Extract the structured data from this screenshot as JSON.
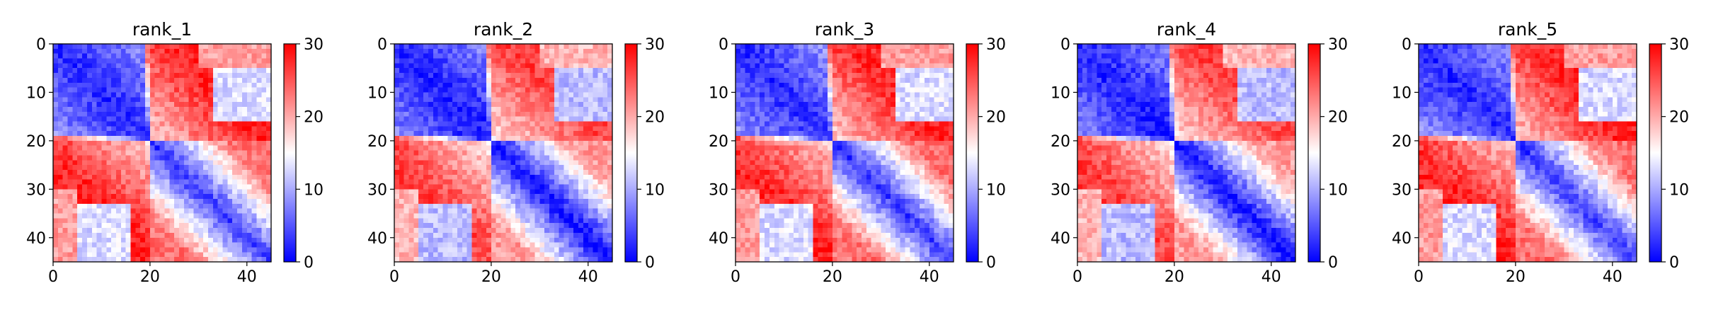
{
  "chart_data": [
    {
      "type": "heatmap",
      "title": "rank_1",
      "matrix_size": 45,
      "xticks": [
        "0",
        "20",
        "40"
      ],
      "yticks": [
        "0",
        "10",
        "20",
        "30",
        "40"
      ],
      "xlim": [
        0,
        45
      ],
      "ylim": [
        45,
        0
      ],
      "colorbar": {
        "min": 0,
        "max": 30,
        "ticks": [
          "0",
          "10",
          "20",
          "30"
        ],
        "colors": [
          "#0000ff",
          "#ffffff",
          "#ff0000"
        ]
      },
      "structure": {
        "domains": [
          [
            0,
            19
          ]
        ],
        "diagonal": "blue (low)",
        "off_diagonal_block_rows_20_45_cols_0_19": "red (high)",
        "region_rows_5_15_cols_35_45": "light blue"
      }
    },
    {
      "type": "heatmap",
      "title": "rank_2",
      "matrix_size": 45,
      "xticks": [
        "0",
        "20",
        "40"
      ],
      "yticks": [
        "0",
        "10",
        "20",
        "30",
        "40"
      ],
      "xlim": [
        0,
        45
      ],
      "ylim": [
        45,
        0
      ],
      "colorbar": {
        "min": 0,
        "max": 30,
        "ticks": [
          "0",
          "10",
          "20",
          "30"
        ],
        "colors": [
          "#0000ff",
          "#ffffff",
          "#ff0000"
        ]
      },
      "structure": {
        "domains": [
          [
            0,
            19
          ]
        ],
        "diagonal": "blue (low)",
        "off_diagonal_block_rows_20_45_cols_0_19": "red (high)",
        "region_rows_5_15_cols_35_45": "light blue"
      }
    },
    {
      "type": "heatmap",
      "title": "rank_3",
      "matrix_size": 45,
      "xticks": [
        "0",
        "20",
        "40"
      ],
      "yticks": [
        "0",
        "10",
        "20",
        "30",
        "40"
      ],
      "xlim": [
        0,
        45
      ],
      "ylim": [
        45,
        0
      ],
      "colorbar": {
        "min": 0,
        "max": 30,
        "ticks": [
          "0",
          "10",
          "20",
          "30"
        ],
        "colors": [
          "#0000ff",
          "#ffffff",
          "#ff0000"
        ]
      },
      "structure": {
        "domains": [
          [
            0,
            19
          ]
        ],
        "diagonal": "blue (low)",
        "off_diagonal_block_rows_20_45_cols_0_19": "red (high)",
        "region_rows_5_15_cols_35_45": "light blue"
      }
    },
    {
      "type": "heatmap",
      "title": "rank_4",
      "matrix_size": 45,
      "xticks": [
        "0",
        "20",
        "40"
      ],
      "yticks": [
        "0",
        "10",
        "20",
        "30",
        "40"
      ],
      "xlim": [
        0,
        45
      ],
      "ylim": [
        45,
        0
      ],
      "colorbar": {
        "min": 0,
        "max": 30,
        "ticks": [
          "0",
          "10",
          "20",
          "30"
        ],
        "colors": [
          "#0000ff",
          "#ffffff",
          "#ff0000"
        ]
      },
      "structure": {
        "domains": [
          [
            0,
            19
          ]
        ],
        "diagonal": "blue (low)",
        "off_diagonal_block_rows_20_45_cols_0_19": "red (high)",
        "region_rows_5_15_cols_35_45": "light blue"
      }
    },
    {
      "type": "heatmap",
      "title": "rank_5",
      "matrix_size": 45,
      "xticks": [
        "0",
        "20",
        "40"
      ],
      "yticks": [
        "0",
        "10",
        "20",
        "30",
        "40"
      ],
      "xlim": [
        0,
        45
      ],
      "ylim": [
        45,
        0
      ],
      "colorbar": {
        "min": 0,
        "max": 30,
        "ticks": [
          "0",
          "10",
          "20",
          "30"
        ],
        "colors": [
          "#0000ff",
          "#ffffff",
          "#ff0000"
        ]
      },
      "structure": {
        "domains": [
          [
            0,
            19
          ]
        ],
        "diagonal": "blue (low)",
        "off_diagonal_block_rows_20_45_cols_0_19": "red (high)",
        "region_rows_5_15_cols_35_45": "light blue"
      }
    }
  ]
}
